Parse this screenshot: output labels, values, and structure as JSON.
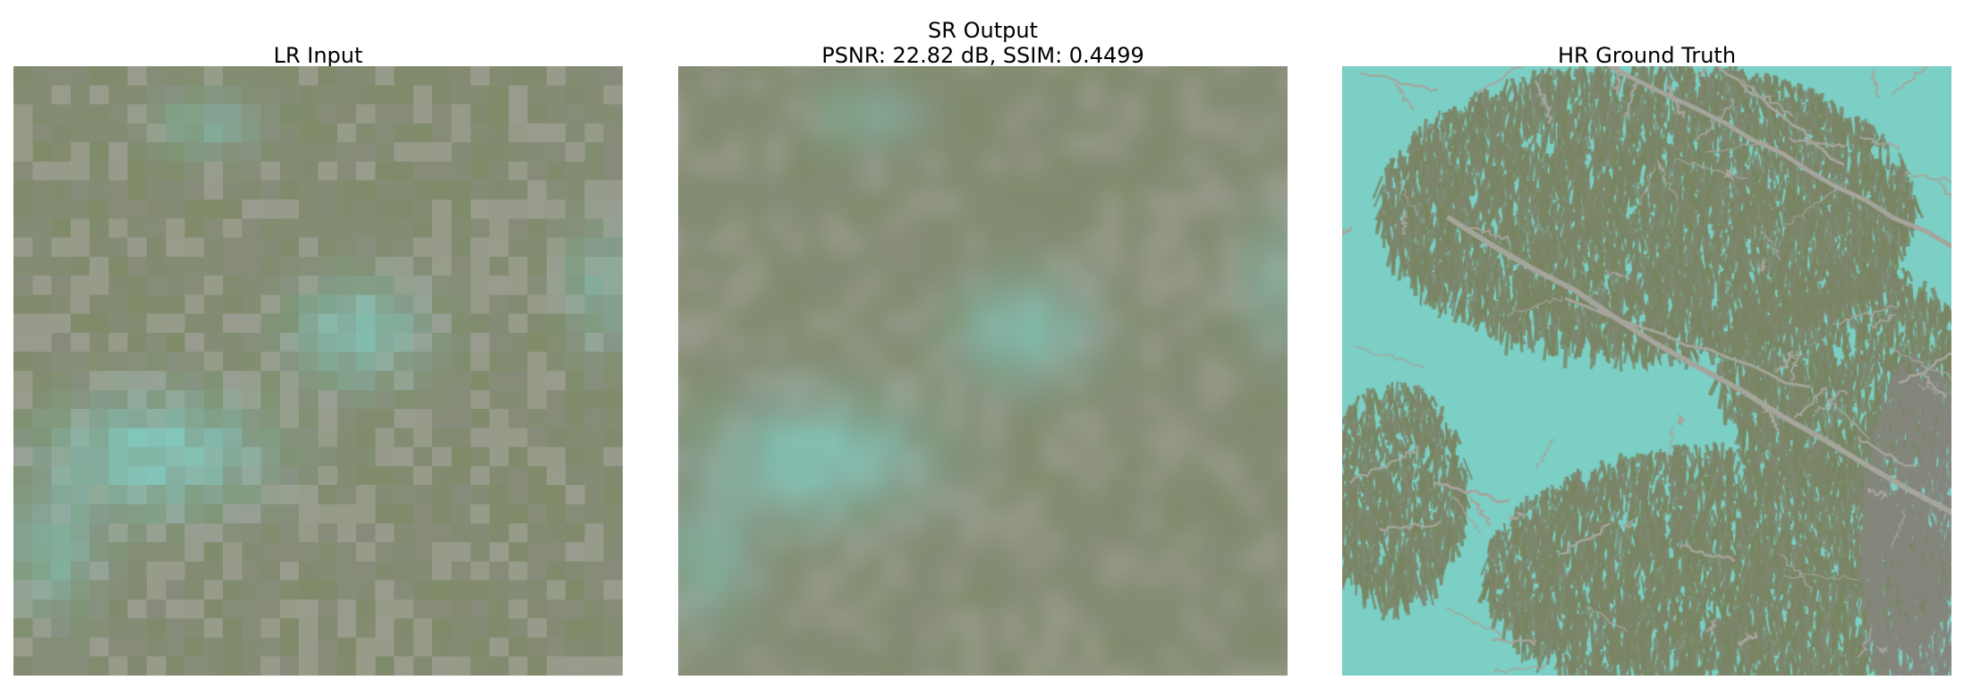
{
  "figure": {
    "panels": [
      {
        "id": "lr",
        "title_lines": [
          "LR Input"
        ]
      },
      {
        "id": "sr",
        "title_lines": [
          "SR Output",
          "PSNR: 22.82 dB, SSIM: 0.4499"
        ]
      },
      {
        "id": "hr",
        "title_lines": [
          "HR Ground Truth"
        ]
      }
    ],
    "palette": {
      "sky_cyan": "#73d9cf",
      "foliage_green": "#6f7f52",
      "branch_gray": "#a8a69e",
      "shadow_gray": "#7f8078",
      "haze": "#9fa294"
    }
  }
}
